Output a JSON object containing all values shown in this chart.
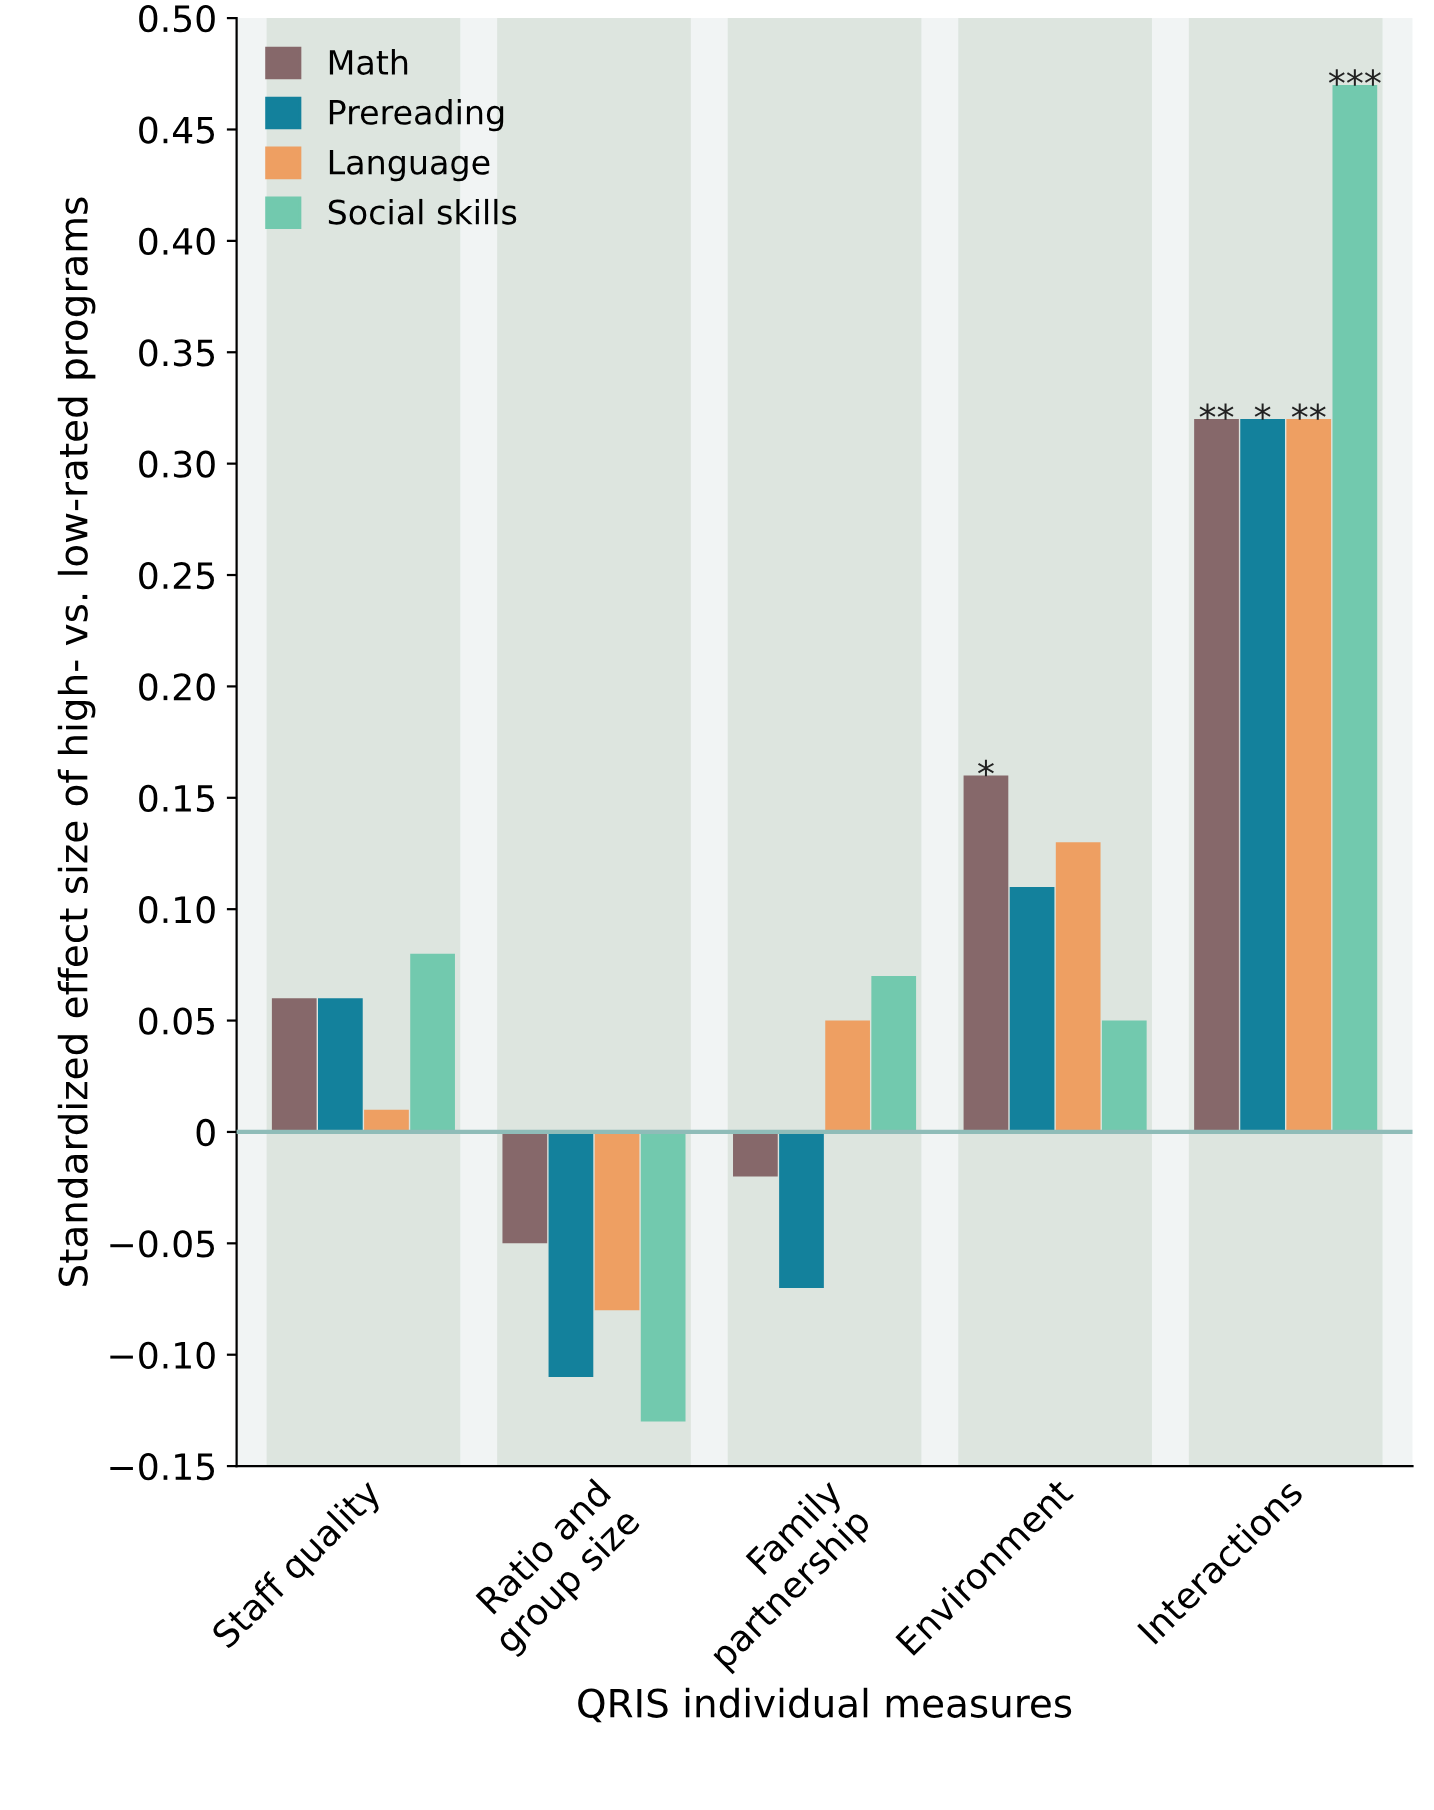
{
  "chart_data": {
    "type": "bar",
    "xlabel": "QRIS individual measures",
    "ylabel": "Standardized effect size of high- vs. low-rated programs",
    "categories": [
      "Staff quality",
      "Ratio and\ngroup size",
      "Family\npartnership",
      "Environment",
      "Interactions"
    ],
    "series": [
      {
        "name": "Math",
        "color": "#86686a",
        "values": [
          0.06,
          -0.05,
          -0.02,
          0.16,
          0.32
        ]
      },
      {
        "name": "Prereading",
        "color": "#13819c",
        "values": [
          0.06,
          -0.11,
          -0.07,
          0.11,
          0.32
        ]
      },
      {
        "name": "Language",
        "color": "#ee9f62",
        "values": [
          0.01,
          -0.08,
          0.05,
          0.13,
          0.32
        ]
      },
      {
        "name": "Social skills",
        "color": "#72c9ae",
        "values": [
          0.08,
          -0.13,
          0.07,
          0.05,
          0.47
        ]
      }
    ],
    "ylim": [
      -0.15,
      0.5
    ],
    "yticks": [
      {
        "value": -0.15,
        "label": "−0.15"
      },
      {
        "value": -0.1,
        "label": "−0.10"
      },
      {
        "value": -0.05,
        "label": "−0.05"
      },
      {
        "value": 0,
        "label": "0"
      },
      {
        "value": 0.05,
        "label": "0.05"
      },
      {
        "value": 0.1,
        "label": "0.10"
      },
      {
        "value": 0.15,
        "label": "0.15"
      },
      {
        "value": 0.2,
        "label": "0.20"
      },
      {
        "value": 0.25,
        "label": "0.25"
      },
      {
        "value": 0.3,
        "label": "0.30"
      },
      {
        "value": 0.35,
        "label": "0.35"
      },
      {
        "value": 0.4,
        "label": "0.40"
      },
      {
        "value": 0.45,
        "label": "0.45"
      },
      {
        "value": 0.5,
        "label": "0.50"
      }
    ],
    "ref_lines": [
      {
        "axis": "y",
        "value": 0,
        "color": "#8fbcb8"
      }
    ],
    "annotations": [
      {
        "text": "**",
        "x": "Interactions",
        "y": 0.32
      },
      {
        "text": "*",
        "x": "Interactions",
        "y": 0.32
      },
      {
        "text": "**",
        "x": "Interactions",
        "y": 0.32
      },
      "***",
      "*"
    ],
    "grid": false,
    "legend": "top left"
  }
}
